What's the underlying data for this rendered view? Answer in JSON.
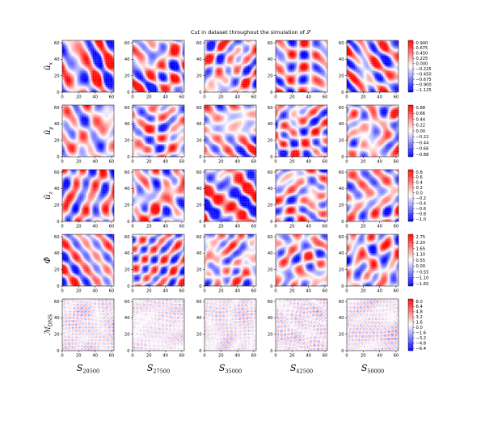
{
  "figure_title": "Cut in dataset throughout the simulation of 𝒮",
  "chart_data": {
    "type": "heatmap",
    "title": "Cut in dataset throughout the simulation of 𝒮",
    "grid": false,
    "colormap": "bwr",
    "axis_ticks": [
      0,
      20,
      40,
      60
    ],
    "xlim": [
      0,
      63
    ],
    "ylim": [
      0,
      63
    ],
    "columns": [
      {
        "label": "S",
        "subscript": "20500"
      },
      {
        "label": "S",
        "subscript": "27500"
      },
      {
        "label": "S",
        "subscript": "35000"
      },
      {
        "label": "S",
        "subscript": "42500"
      },
      {
        "label": "S",
        "subscript": "50000"
      }
    ],
    "rows": [
      {
        "symbol": "ū",
        "subscript": "x",
        "scale": 0.95,
        "noise": "smooth",
        "colorbar_ticks": [
          "0.900",
          "0.675",
          "0.450",
          "0.225",
          "0.000",
          "−0.225",
          "−0.450",
          "−0.675",
          "−0.900",
          "−1.125"
        ]
      },
      {
        "symbol": "ū",
        "subscript": "y",
        "scale": 0.85,
        "noise": "smooth",
        "colorbar_ticks": [
          "0.88",
          "0.66",
          "0.44",
          "0.22",
          "0.00",
          "−0.22",
          "−0.44",
          "−0.66",
          "−0.88"
        ]
      },
      {
        "symbol": "ū",
        "subscript": "z",
        "scale": 0.9,
        "noise": "smooth",
        "colorbar_ticks": [
          "0.8",
          "0.6",
          "0.4",
          "0.2",
          "0.0",
          "−0.2",
          "−0.4",
          "−0.6",
          "−0.8",
          "−1.0"
        ]
      },
      {
        "symbol": "Φ̄",
        "subscript": "",
        "scale": 0.75,
        "noise": "smooth",
        "colorbar_ticks": [
          "2.75",
          "2.20",
          "1.65",
          "1.10",
          "0.55",
          "0.00",
          "−0.55",
          "−1.10",
          "−1.65"
        ]
      },
      {
        "symbol": "ℳ",
        "subscript": "DNS",
        "scale": 0.35,
        "noise": "fine",
        "colorbar_ticks": [
          "8.0",
          "6.4",
          "4.8",
          "3.2",
          "1.6",
          "0.0",
          "−1.6",
          "−3.2",
          "−4.8",
          "−6.4"
        ]
      }
    ]
  }
}
